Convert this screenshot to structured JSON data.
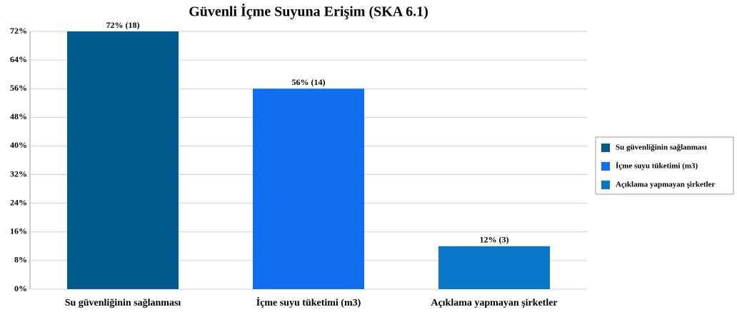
{
  "chart_data": {
    "type": "bar",
    "title": "Güvenli İçme Suyuna Erişim (SKA 6.1)",
    "categories": [
      "Su güvenliğinin sağlanması",
      "İçme suyu tüketimi (m3)",
      "Açıklama yapmayan şirketler"
    ],
    "values": [
      72,
      56,
      12
    ],
    "value_labels": [
      "72% (18)",
      "56% (14)",
      "12% (3)"
    ],
    "colors": [
      "#005a8e",
      "#0f6ff0",
      "#0a78c8"
    ],
    "ylim": [
      0,
      72
    ],
    "yticks": [
      {
        "value": 0,
        "label": "0%"
      },
      {
        "value": 8,
        "label": "8%"
      },
      {
        "value": 16,
        "label": "16%"
      },
      {
        "value": 24,
        "label": "24%"
      },
      {
        "value": 32,
        "label": "32%"
      },
      {
        "value": 40,
        "label": "40%"
      },
      {
        "value": 48,
        "label": "48%"
      },
      {
        "value": 56,
        "label": "56%"
      },
      {
        "value": 64,
        "label": "64%"
      },
      {
        "value": 72,
        "label": "72%"
      }
    ],
    "grid": true,
    "legend": "right"
  }
}
